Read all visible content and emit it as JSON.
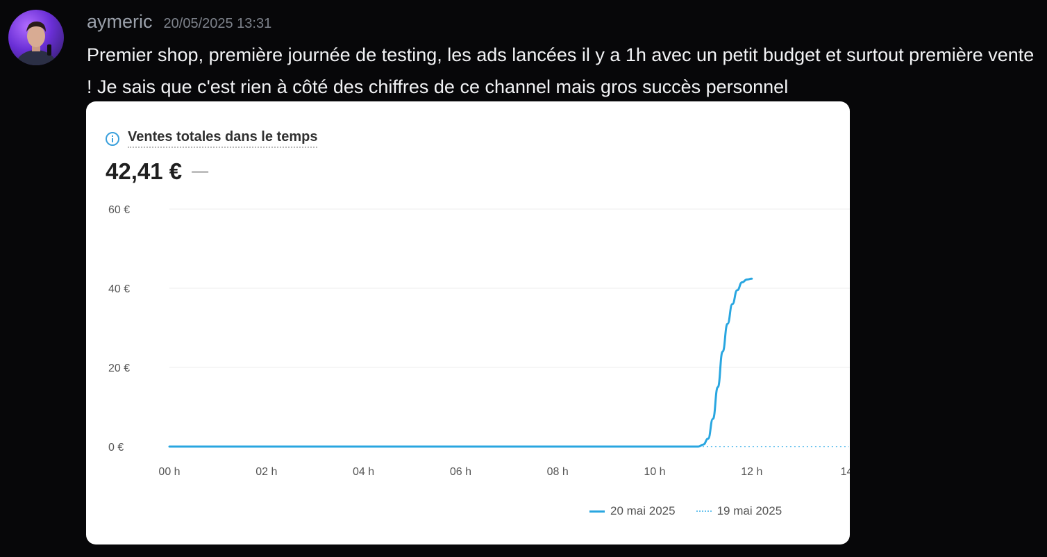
{
  "message": {
    "username": "aymeric",
    "timestamp": "20/05/2025 13:31",
    "text": "Premier shop, première journée de testing, les ads lancées il y a 1h avec un petit budget et surtout première vente ! Je sais que c'est rien à côté des chiffres de ce channel mais gros succès personnel"
  },
  "card": {
    "title": "Ventes totales dans le temps",
    "total": "42,41 €",
    "change": "—"
  },
  "colors": {
    "series_current": "#29a6e0",
    "series_previous": "#6cc4ee",
    "gridline": "#ececec"
  },
  "chart_data": {
    "type": "line",
    "xlabel": "",
    "ylabel": "",
    "ylim": [
      0,
      60
    ],
    "xlim": [
      0,
      14
    ],
    "y_ticks": [
      {
        "value": 0,
        "label": "0 €"
      },
      {
        "value": 20,
        "label": "20 €"
      },
      {
        "value": 40,
        "label": "40 €"
      },
      {
        "value": 60,
        "label": "60 €"
      }
    ],
    "x_ticks": [
      {
        "value": 0,
        "label": "00 h"
      },
      {
        "value": 2,
        "label": "02 h"
      },
      {
        "value": 4,
        "label": "04 h"
      },
      {
        "value": 6,
        "label": "06 h"
      },
      {
        "value": 8,
        "label": "08 h"
      },
      {
        "value": 10,
        "label": "10 h"
      },
      {
        "value": 12,
        "label": "12 h"
      },
      {
        "value": 14,
        "label": "14"
      }
    ],
    "grid": true,
    "legend": "bottom-right",
    "series": [
      {
        "name": "20 mai 2025",
        "style": "solid",
        "x": [
          0,
          10.9,
          11.0,
          11.1,
          11.2,
          11.3,
          11.4,
          11.5,
          11.6,
          11.7,
          11.8,
          11.9,
          12.0
        ],
        "y": [
          0,
          0,
          0.5,
          2,
          7,
          15,
          24,
          31,
          36,
          39.5,
          41.5,
          42.2,
          42.41
        ]
      },
      {
        "name": "19 mai 2025",
        "style": "dotted",
        "x": [
          0,
          14
        ],
        "y": [
          0,
          0
        ]
      }
    ]
  }
}
